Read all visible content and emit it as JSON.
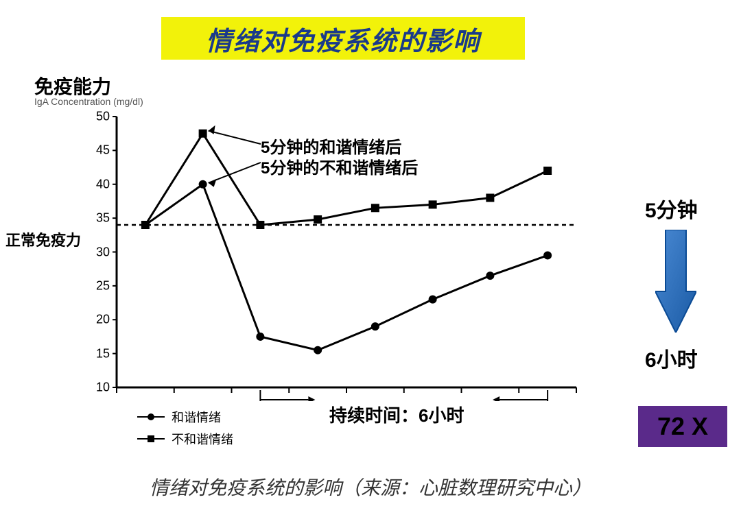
{
  "title": "情绪对免疫系统的影响",
  "title_bg": "#f2f20a",
  "title_color": "#1a3a8a",
  "y_axis_title": "免疫能力",
  "y_axis_subtitle": "IgA Concentration (mg/dl)",
  "normal_label": "正常免疫力",
  "annotations": {
    "harmonic": "5分钟的和谐情绪后",
    "disharmonic": "5分钟的不和谐情绪后"
  },
  "legend": {
    "harmonic": "和谐情绪",
    "disharmonic": "不和谐情绪"
  },
  "x_axis_label": "持续时间：6小时",
  "right_labels": {
    "top": "5分钟",
    "bottom": "6小时"
  },
  "multiplier": "72 X",
  "multiplier_bg": "#5a2a8a",
  "caption": "情绪对免疫系统的影响（来源：心脏数理研究中心）",
  "chart": {
    "type": "line",
    "ylim": [
      10,
      50
    ],
    "ytick_step": 5,
    "yticks": [
      10,
      15,
      20,
      25,
      30,
      35,
      40,
      45,
      50
    ],
    "baseline_y": 34,
    "x_positions": [
      0.5,
      1.5,
      2.5,
      3.5,
      4.5,
      5.5,
      6.5,
      7.5
    ],
    "x_count": 8,
    "series": {
      "harmonic_squares": {
        "marker": "square",
        "marker_size": 12,
        "line_width": 3,
        "color": "#000000",
        "y_values": [
          34,
          47.5,
          34,
          34.8,
          36.5,
          37,
          38,
          42
        ]
      },
      "disharmonic_circles": {
        "marker": "circle",
        "marker_size": 12,
        "line_width": 3,
        "color": "#000000",
        "y_values": [
          34,
          40,
          17.5,
          15.5,
          19,
          23,
          26.5,
          29.5
        ]
      }
    },
    "grid_color": "#000000",
    "background_color": "#ffffff",
    "arrow_color": "#1a6ac4",
    "arrow_border": "#0a4a94"
  }
}
